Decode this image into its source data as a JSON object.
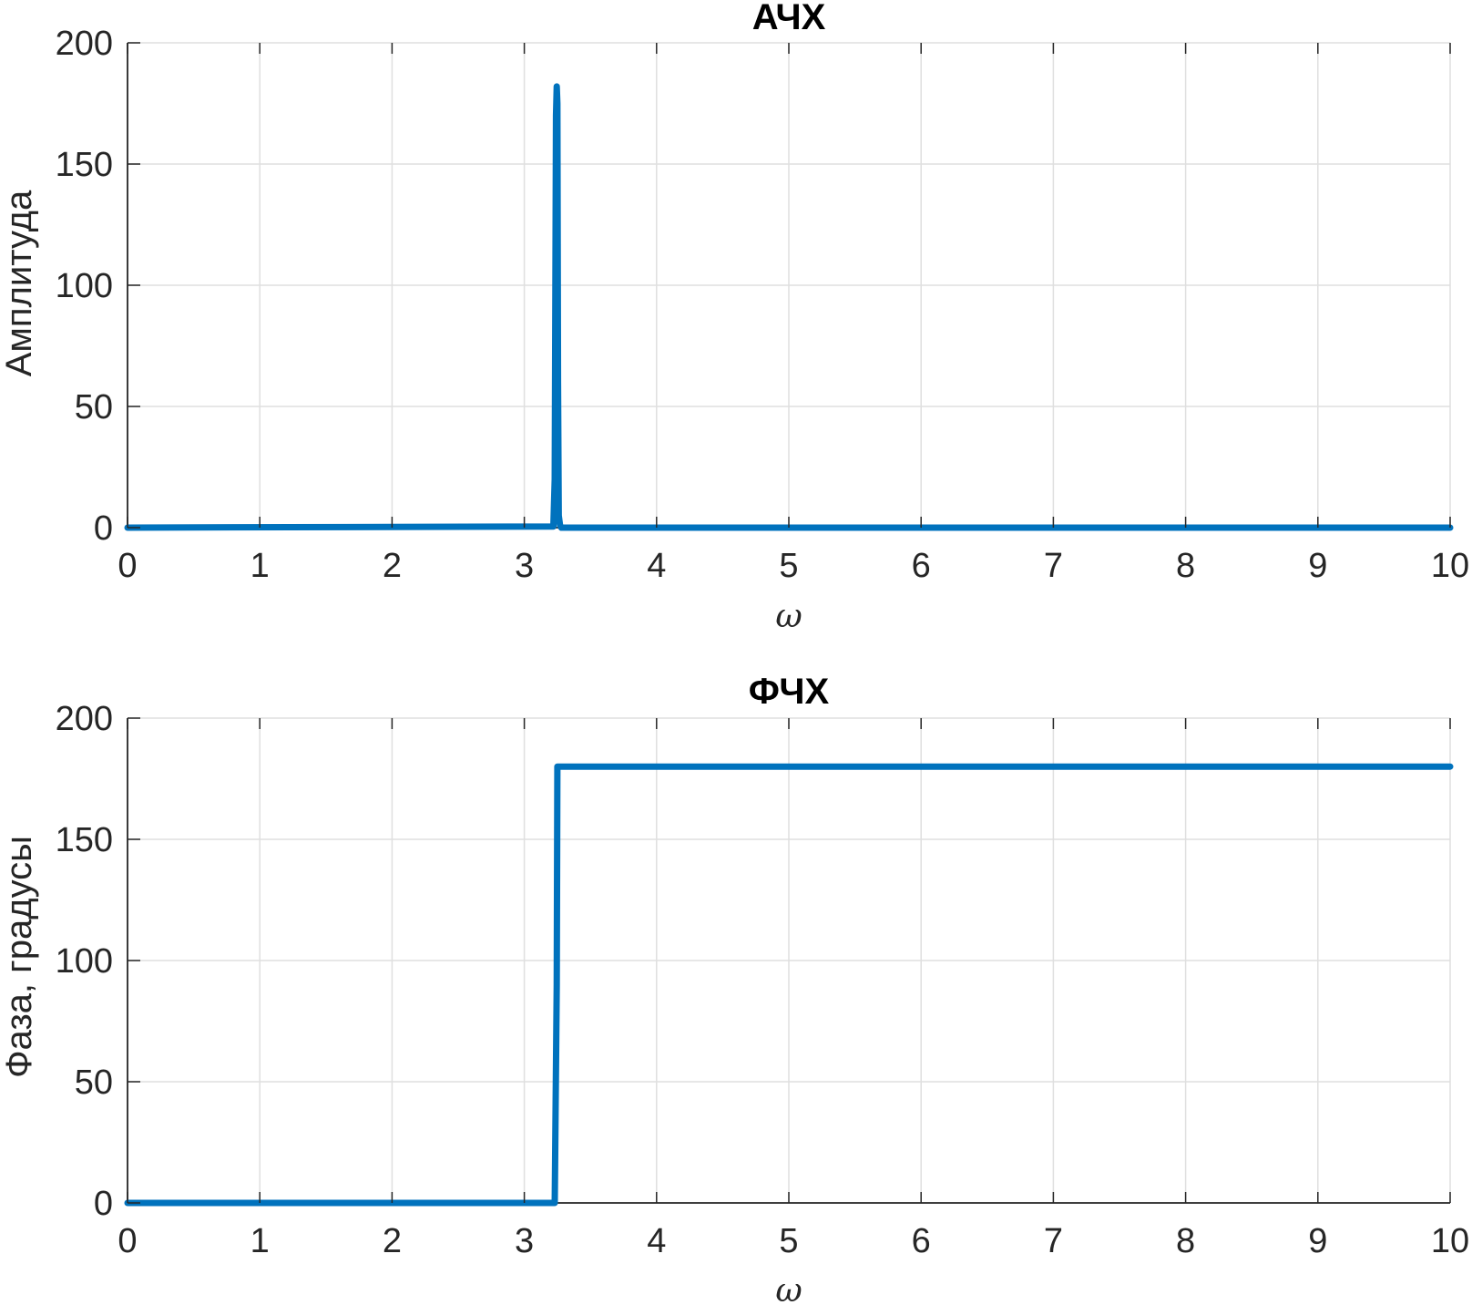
{
  "chart_data": [
    {
      "type": "line",
      "title": "АЧХ",
      "xlabel": "ω",
      "ylabel": "Амплитуда",
      "xlim": [
        0,
        10
      ],
      "ylim": [
        0,
        200
      ],
      "xticks": [
        "0",
        "1",
        "2",
        "3",
        "4",
        "5",
        "6",
        "7",
        "8",
        "9",
        "10"
      ],
      "yticks": [
        "0",
        "50",
        "100",
        "150",
        "200"
      ],
      "grid": true,
      "legend": "none",
      "series": [
        {
          "color": "#0072BD",
          "x": [
            0,
            3.22,
            3.23,
            3.24,
            3.245,
            3.25,
            3.255,
            3.26,
            3.27,
            3.28,
            10
          ],
          "y": [
            0,
            0.5,
            20,
            170,
            182,
            175,
            60,
            5,
            1,
            0,
            0
          ]
        }
      ]
    },
    {
      "type": "line",
      "title": "ФЧХ",
      "xlabel": "ω",
      "ylabel": "Фаза, градусы",
      "xlim": [
        0,
        10
      ],
      "ylim": [
        0,
        200
      ],
      "xticks": [
        "0",
        "1",
        "2",
        "3",
        "4",
        "5",
        "6",
        "7",
        "8",
        "9",
        "10"
      ],
      "yticks": [
        "0",
        "50",
        "100",
        "150",
        "200"
      ],
      "grid": true,
      "legend": "none",
      "series": [
        {
          "color": "#0072BD",
          "x": [
            0,
            3.23,
            3.245,
            3.25,
            3.26,
            10
          ],
          "y": [
            0,
            0,
            90,
            180,
            180,
            180
          ]
        }
      ]
    }
  ]
}
